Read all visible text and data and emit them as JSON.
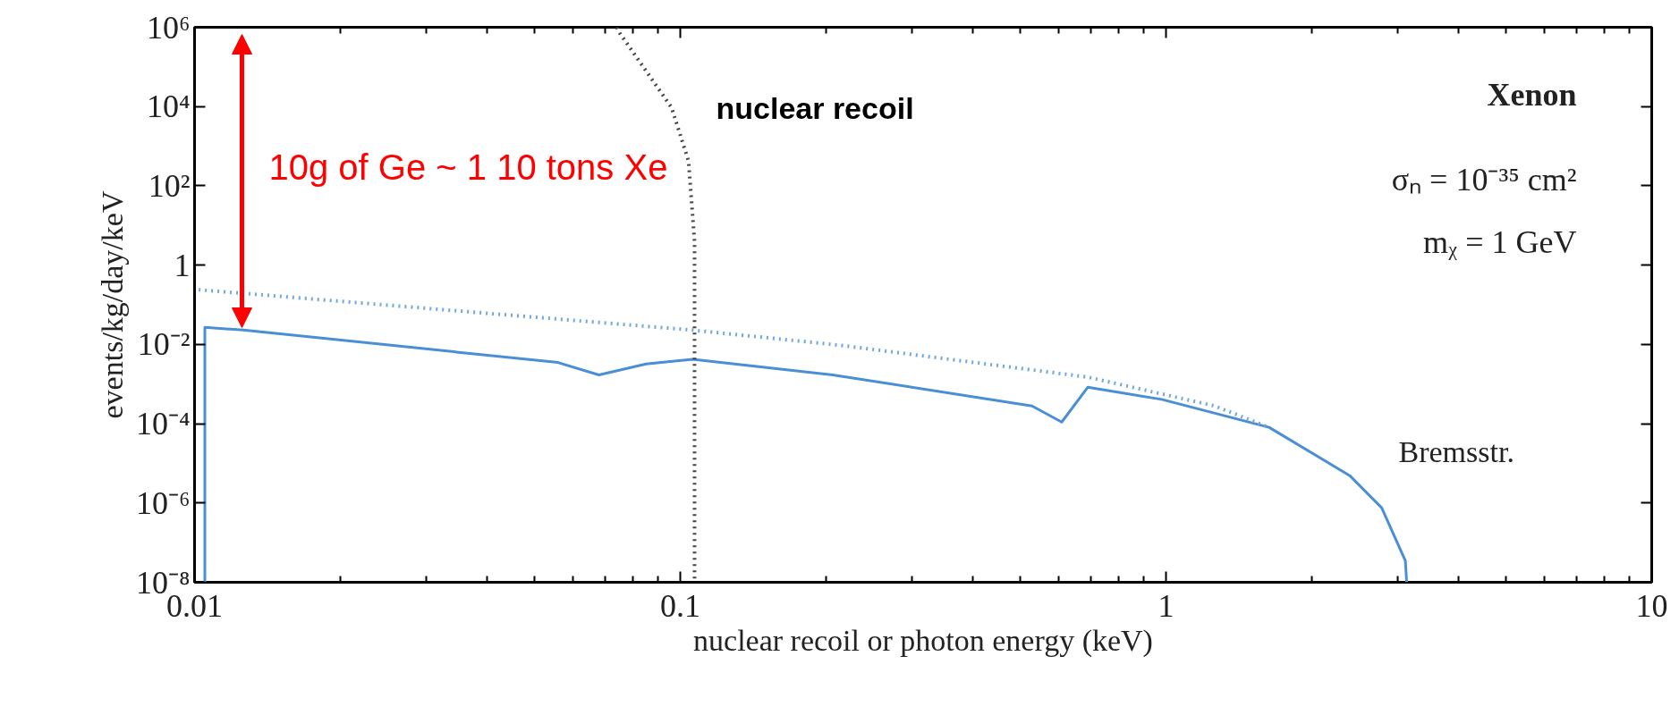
{
  "chart_data": {
    "type": "line",
    "xlabel": "nuclear recoil or photon energy (keV)",
    "ylabel": "events/kg/day/keV",
    "log": "xy",
    "grid": false,
    "xlim": [
      0.01,
      10
    ],
    "xticks": [
      0.01,
      0.1,
      1,
      10
    ],
    "ylim": [
      1e-08,
      1000000.0
    ],
    "yticks": [
      {
        "value": 1e-08,
        "label": "10⁻⁸"
      },
      {
        "value": 1e-06,
        "label": "10⁻⁶"
      },
      {
        "value": 0.0001,
        "label": "10⁻⁴"
      },
      {
        "value": 0.01,
        "label": "10⁻²"
      },
      1,
      {
        "value": 100,
        "label": "10²"
      },
      {
        "value": 10000,
        "label": "10⁴"
      },
      {
        "value": 1000000,
        "label": "10⁶"
      }
    ],
    "series": [
      {
        "color": "#4a8fd6",
        "line_style": "solid",
        "x": [
          0.0105,
          0.0105,
          0.0126,
          0.056,
          0.068,
          0.085,
          0.106,
          0.206,
          0.53,
          0.61,
          0.69,
          0.98,
          1.63,
          2.39,
          2.78,
          3.11,
          3.13
        ],
        "values": [
          1e-08,
          0.027,
          0.023,
          0.0035,
          0.0017,
          0.0032,
          0.0042,
          0.0017,
          0.00028,
          0.00011,
          0.00083,
          0.00041,
          8.1e-05,
          4.9e-06,
          7.6e-07,
          3.5e-08,
          1e-08
        ]
      },
      {
        "color": "#6fa8e0",
        "line_style": "dotted",
        "x": [
          0.0102,
          0.106,
          0.214,
          0.69,
          1.26,
          1.63
        ],
        "values": [
          0.24,
          0.023,
          0.0095,
          0.0015,
          0.00028,
          8.1e-05
        ]
      },
      {
        "color": "#444444",
        "line_style": "dotted",
        "x": [
          0.074,
          0.075,
          0.096,
          0.104,
          0.107,
          0.107
        ],
        "values": [
          1000000,
          720000,
          9300,
          420,
          3.9,
          1e-08
        ]
      }
    ],
    "annotations": [
      "10g of Ge ~ 1 10 tons Xe",
      "nuclear recoil",
      "Bremsstr.",
      "Xenon",
      "σₙ = 10⁻³⁵ cm²",
      "mᵪ = 1 GeV"
    ]
  }
}
